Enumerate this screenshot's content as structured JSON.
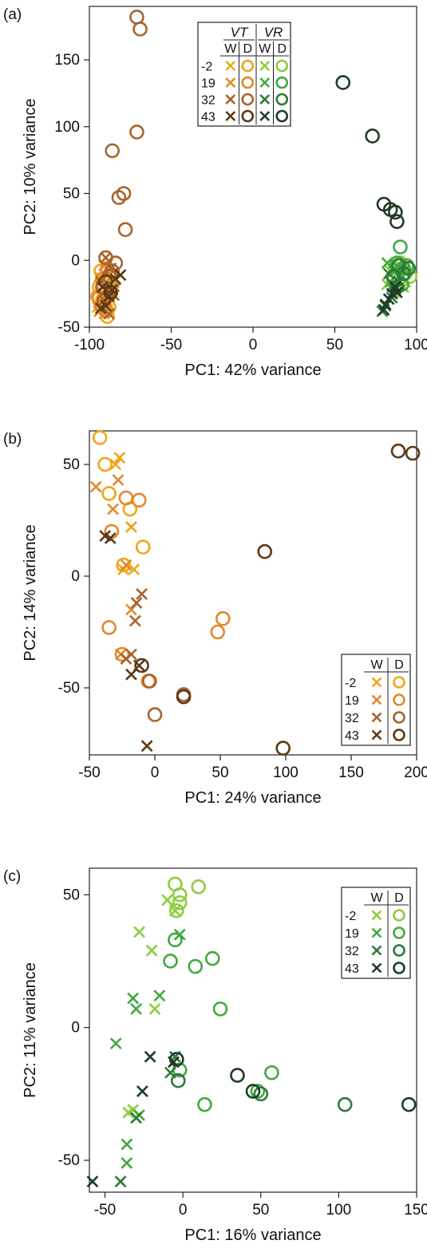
{
  "colors": {
    "yellow": "#f0a51a",
    "orange": "#e2882a",
    "brown": "#a8632a",
    "darkbrown": "#5c3815",
    "lightgreen": "#8ccc3e",
    "green": "#3fa93f",
    "darkgreen": "#2c7a3a",
    "nearblack": "#1f3b27"
  },
  "chart_data": [
    {
      "type": "scatter",
      "panel_label": "(a)",
      "xlabel": "PC1: 42% variance",
      "ylabel": "PC2: 10% variance",
      "xlim": [
        -100,
        100
      ],
      "ylim": [
        -50,
        190
      ],
      "xticks": [
        "-100",
        "-50",
        "0",
        "50",
        "100"
      ],
      "yticks": [
        "-50",
        "0",
        "50",
        "100",
        "150"
      ],
      "grid": false,
      "legend": {
        "placement": "top-center",
        "groups": [
          "VT",
          "VR"
        ],
        "cols": [
          "W",
          "D"
        ],
        "rows": [
          "-2",
          "19",
          "32",
          "43"
        ]
      },
      "series": [
        {
          "c": "yellow",
          "m": "x",
          "points": [
            [
              -94,
              -12
            ],
            [
              -90,
              -18
            ],
            [
              -92,
              -28
            ],
            [
              -88,
              -22
            ],
            [
              -95,
              -35
            ],
            [
              -86,
              -15
            ],
            [
              -91,
              -40
            ],
            [
              -89,
              -30
            ]
          ]
        },
        {
          "c": "yellow",
          "m": "o",
          "points": [
            [
              -93,
              -8
            ],
            [
              -90,
              -25
            ],
            [
              -88,
              -35
            ],
            [
              -94,
              -20
            ],
            [
              -91,
              -15
            ],
            [
              -89,
              -42
            ],
            [
              -92,
              -30
            ],
            [
              -87,
              -12
            ],
            [
              -95,
              -27
            ]
          ]
        },
        {
          "c": "orange",
          "m": "x",
          "points": [
            [
              -91,
              -4
            ],
            [
              -88,
              -10
            ],
            [
              -94,
              -38
            ],
            [
              -86,
              -20
            ],
            [
              -92,
              -24
            ],
            [
              -89,
              -32
            ]
          ]
        },
        {
          "c": "orange",
          "m": "o",
          "points": [
            [
              -92,
              -14
            ],
            [
              -89,
              -6
            ],
            [
              -86,
              -18
            ],
            [
              -94,
              -28
            ],
            [
              -90,
              -38
            ],
            [
              -88,
              -26
            ],
            [
              -93,
              -34
            ]
          ]
        },
        {
          "c": "brown",
          "m": "x",
          "points": [
            [
              -90,
              2
            ],
            [
              -87,
              -6
            ],
            [
              -93,
              -16
            ],
            [
              -85,
              -26
            ],
            [
              -91,
              -30
            ],
            [
              -88,
              -40
            ]
          ]
        },
        {
          "c": "brown",
          "m": "o",
          "points": [
            [
              -90,
              2
            ],
            [
              -86,
              -8
            ],
            [
              -92,
              -20
            ],
            [
              -88,
              -12
            ],
            [
              -84,
              -2
            ],
            [
              -91,
              -30
            ],
            [
              -79,
              50
            ],
            [
              -82,
              47
            ],
            [
              -78,
              23
            ],
            [
              -86,
              82
            ],
            [
              -71,
              96
            ],
            [
              -69,
              173
            ],
            [
              -71,
              182
            ]
          ]
        },
        {
          "c": "darkbrown",
          "m": "x",
          "points": [
            [
              -92,
              -20
            ],
            [
              -88,
              -27
            ],
            [
              -84,
              -14
            ],
            [
              -90,
              -34
            ],
            [
              -86,
              -22
            ],
            [
              -81,
              -11
            ],
            [
              -93,
              -36
            ]
          ]
        },
        {
          "c": "darkbrown",
          "m": "o",
          "points": [
            [
              -90,
              -16
            ],
            [
              -87,
              -24
            ]
          ]
        },
        {
          "c": "lightgreen",
          "m": "x",
          "points": [
            [
              84,
              -8
            ],
            [
              88,
              -14
            ],
            [
              92,
              -20
            ],
            [
              86,
              -24
            ],
            [
              90,
              -4
            ],
            [
              93,
              -16
            ],
            [
              82,
              -18
            ]
          ]
        },
        {
          "c": "lightgreen",
          "m": "o",
          "points": [
            [
              93,
              -10
            ],
            [
              96,
              -12
            ],
            [
              90,
              -2
            ],
            [
              88,
              -20
            ]
          ]
        },
        {
          "c": "green",
          "m": "x",
          "points": [
            [
              82,
              -2
            ],
            [
              86,
              -8
            ],
            [
              90,
              -12
            ],
            [
              84,
              -16
            ],
            [
              88,
              -4
            ],
            [
              92,
              -8
            ],
            [
              85,
              -20
            ]
          ]
        },
        {
          "c": "green",
          "m": "o",
          "points": [
            [
              88,
              -2
            ],
            [
              92,
              -6
            ],
            [
              90,
              10
            ],
            [
              86,
              -14
            ],
            [
              94,
              -4
            ],
            [
              91,
              -18
            ]
          ]
        },
        {
          "c": "darkgreen",
          "m": "x",
          "points": [
            [
              83,
              -10
            ],
            [
              87,
              -22
            ],
            [
              81,
              -34
            ],
            [
              85,
              -28
            ],
            [
              89,
              -16
            ],
            [
              79,
              -38
            ]
          ]
        },
        {
          "c": "darkgreen",
          "m": "o",
          "points": [
            [
              89,
              -4
            ],
            [
              92,
              -10
            ],
            [
              88,
              -20
            ],
            [
              95,
              -6
            ],
            [
              86,
              -12
            ]
          ]
        },
        {
          "c": "nearblack",
          "m": "x",
          "points": [
            [
              85,
              -25
            ],
            [
              81,
              -33
            ],
            [
              87,
              -20
            ],
            [
              80,
              -37
            ],
            [
              83,
              -29
            ],
            [
              88,
              -24
            ]
          ]
        },
        {
          "c": "nearblack",
          "m": "o",
          "points": [
            [
              55,
              133
            ],
            [
              73,
              93
            ],
            [
              80,
              42
            ],
            [
              84,
              38
            ],
            [
              88,
              29
            ],
            [
              87,
              36
            ]
          ]
        }
      ]
    },
    {
      "type": "scatter",
      "panel_label": "(b)",
      "xlabel": "PC1: 24% variance",
      "ylabel": "PC2: 14% variance",
      "xlim": [
        -50,
        200
      ],
      "ylim": [
        -80,
        65
      ],
      "xticks": [
        "-50",
        "0",
        "50",
        "100",
        "150",
        "200"
      ],
      "yticks": [
        "-50",
        "0",
        "50"
      ],
      "grid": false,
      "legend": {
        "placement": "bottom-right",
        "groups": [],
        "cols": [
          "W",
          "D"
        ],
        "rows": [
          "-2",
          "19",
          "32",
          "43"
        ]
      },
      "series": [
        {
          "c": "yellow",
          "m": "x",
          "points": [
            [
              -27,
              53
            ],
            [
              -18,
              22
            ],
            [
              -24,
              3
            ],
            [
              -30,
              50
            ],
            [
              -16,
              3
            ]
          ]
        },
        {
          "c": "yellow",
          "m": "o",
          "points": [
            [
              -42,
              62
            ],
            [
              -38,
              50
            ],
            [
              -19,
              30
            ],
            [
              -9,
              13
            ],
            [
              -24,
              5
            ],
            [
              -35,
              37
            ]
          ]
        },
        {
          "c": "orange",
          "m": "x",
          "points": [
            [
              -45,
              40
            ],
            [
              -28,
              43
            ],
            [
              -32,
              30
            ],
            [
              -22,
              5
            ],
            [
              -26,
              -35
            ],
            [
              -18,
              -15
            ]
          ]
        },
        {
          "c": "orange",
          "m": "o",
          "points": [
            [
              -33,
              20
            ],
            [
              -22,
              35
            ],
            [
              -12,
              34
            ],
            [
              -25,
              -35
            ],
            [
              -35,
              -23
            ],
            [
              48,
              -25
            ],
            [
              52,
              -19
            ],
            [
              -5,
              -47
            ]
          ]
        },
        {
          "c": "brown",
          "m": "x",
          "points": [
            [
              -10,
              -8
            ],
            [
              -15,
              -20
            ],
            [
              -18,
              -35
            ],
            [
              -14,
              -12
            ],
            [
              -22,
              -37
            ]
          ]
        },
        {
          "c": "brown",
          "m": "o",
          "points": [
            [
              0,
              -62
            ],
            [
              -4,
              -47
            ],
            [
              22,
              -53
            ]
          ]
        },
        {
          "c": "darkbrown",
          "m": "x",
          "points": [
            [
              -38,
              18
            ],
            [
              -34,
              17
            ],
            [
              -12,
              -40
            ],
            [
              -18,
              -44
            ],
            [
              -6,
              -76
            ]
          ]
        },
        {
          "c": "darkbrown",
          "m": "o",
          "points": [
            [
              -10,
              -40
            ],
            [
              22,
              -54
            ],
            [
              84,
              11
            ],
            [
              98,
              -77
            ],
            [
              186,
              56
            ],
            [
              197,
              55
            ]
          ]
        }
      ]
    },
    {
      "type": "scatter",
      "panel_label": "(c)",
      "xlabel": "PC1: 16% variance",
      "ylabel": "PC2: 11% variance",
      "xlim": [
        -60,
        150
      ],
      "ylim": [
        -62,
        60
      ],
      "xticks": [
        "-50",
        "0",
        "50",
        "100",
        "150"
      ],
      "yticks": [
        "-50",
        "0",
        "50"
      ],
      "grid": false,
      "legend": {
        "placement": "top-right",
        "groups": [],
        "cols": [
          "W",
          "D"
        ],
        "rows": [
          "-2",
          "19",
          "32",
          "43"
        ]
      },
      "series": [
        {
          "c": "lightgreen",
          "m": "x",
          "points": [
            [
              -10,
              48
            ],
            [
              -5,
              44
            ],
            [
              -28,
              36
            ],
            [
              -20,
              29
            ],
            [
              -18,
              7
            ],
            [
              -35,
              -32
            ],
            [
              -32,
              -31
            ]
          ]
        },
        {
          "c": "lightgreen",
          "m": "o",
          "points": [
            [
              -5,
              54
            ],
            [
              -2,
              50
            ],
            [
              10,
              53
            ],
            [
              -4,
              44
            ],
            [
              -2,
              47
            ]
          ]
        },
        {
          "c": "green",
          "m": "x",
          "points": [
            [
              -15,
              12
            ],
            [
              -32,
              11
            ],
            [
              -30,
              7
            ],
            [
              -43,
              -6
            ],
            [
              -36,
              -44
            ],
            [
              -28,
              -33
            ],
            [
              -36,
              -51
            ],
            [
              -2,
              35
            ]
          ]
        },
        {
          "c": "green",
          "m": "o",
          "points": [
            [
              -8,
              25
            ],
            [
              -5,
              33
            ],
            [
              8,
              23
            ],
            [
              19,
              26
            ],
            [
              24,
              7
            ],
            [
              -2,
              -16
            ],
            [
              14,
              -29
            ],
            [
              57,
              -17
            ],
            [
              48,
              -24
            ]
          ]
        },
        {
          "c": "darkgreen",
          "m": "x",
          "points": [
            [
              -5,
              -11
            ],
            [
              -8,
              -17
            ],
            [
              -30,
              -34
            ],
            [
              -40,
              -58
            ]
          ]
        },
        {
          "c": "darkgreen",
          "m": "o",
          "points": [
            [
              50,
              -25
            ],
            [
              104,
              -29
            ],
            [
              -3,
              -20
            ]
          ]
        },
        {
          "c": "nearblack",
          "m": "x",
          "points": [
            [
              -21,
              -11
            ],
            [
              -26,
              -24
            ],
            [
              -6,
              -13
            ],
            [
              -58,
              -58
            ]
          ]
        },
        {
          "c": "nearblack",
          "m": "o",
          "points": [
            [
              35,
              -18
            ],
            [
              45,
              -24
            ],
            [
              145,
              -29
            ],
            [
              -4,
              -12
            ]
          ]
        }
      ]
    }
  ]
}
